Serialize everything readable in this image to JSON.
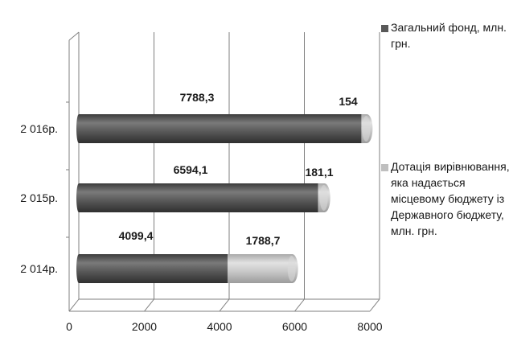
{
  "chart_data": {
    "type": "bar",
    "orientation": "horizontal",
    "stacked": true,
    "categories": [
      "2 014р.",
      "2 015р.",
      "2 016р."
    ],
    "series": [
      {
        "name": "Загальний фонд, млн. грн.",
        "values": [
          4099.4,
          6594.1,
          7788.3
        ],
        "labels": [
          "4099,4",
          "6594,1",
          "7788,3"
        ],
        "color": "#595959"
      },
      {
        "name": "Дотація вирівнювання, яка надається місцевому бюджету із Державного бюджету, млн. грн.",
        "values": [
          1788.7,
          181.1,
          154
        ],
        "labels": [
          "1788,7",
          "181,1",
          "154"
        ],
        "color": "#bfbfbf"
      }
    ],
    "xlim": [
      0,
      8000
    ],
    "xticks": [
      "0",
      "2000",
      "4000",
      "6000",
      "8000"
    ],
    "grid": true,
    "legend_position": "right"
  }
}
